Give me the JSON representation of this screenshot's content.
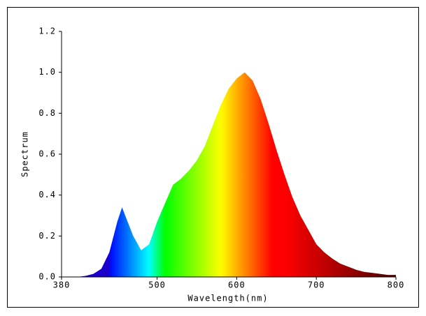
{
  "chart_data": {
    "type": "area",
    "x_label": "Wavelength(nm)",
    "y_label": "Spectrum",
    "x": [
      380,
      390,
      400,
      410,
      420,
      430,
      440,
      450,
      456,
      460,
      470,
      480,
      490,
      500,
      510,
      520,
      530,
      540,
      550,
      560,
      570,
      580,
      590,
      600,
      610,
      620,
      630,
      640,
      650,
      660,
      670,
      680,
      690,
      700,
      710,
      720,
      730,
      740,
      750,
      760,
      770,
      780,
      790,
      800
    ],
    "values": [
      0,
      0,
      0,
      0.005,
      0.015,
      0.04,
      0.12,
      0.27,
      0.34,
      0.3,
      0.2,
      0.13,
      0.16,
      0.27,
      0.36,
      0.45,
      0.48,
      0.52,
      0.57,
      0.64,
      0.74,
      0.84,
      0.92,
      0.97,
      1.0,
      0.96,
      0.87,
      0.75,
      0.62,
      0.5,
      0.39,
      0.3,
      0.23,
      0.16,
      0.12,
      0.09,
      0.065,
      0.05,
      0.035,
      0.025,
      0.02,
      0.015,
      0.01,
      0.01
    ],
    "xlim": [
      380,
      800
    ],
    "xticks": [
      380,
      500,
      600,
      700,
      800
    ],
    "ylim": [
      0,
      1.2
    ],
    "yticks": [
      {
        "value": 0,
        "label": "0.0"
      },
      {
        "value": 0.2,
        "label": "0.2"
      },
      {
        "value": 0.4,
        "label": "0.4"
      },
      {
        "value": 0.6,
        "label": "0.6"
      },
      {
        "value": 0.8,
        "label": "0.8"
      },
      {
        "value": 1,
        "label": "1.0"
      },
      {
        "value": 1.2,
        "label": "1.2"
      }
    ]
  }
}
